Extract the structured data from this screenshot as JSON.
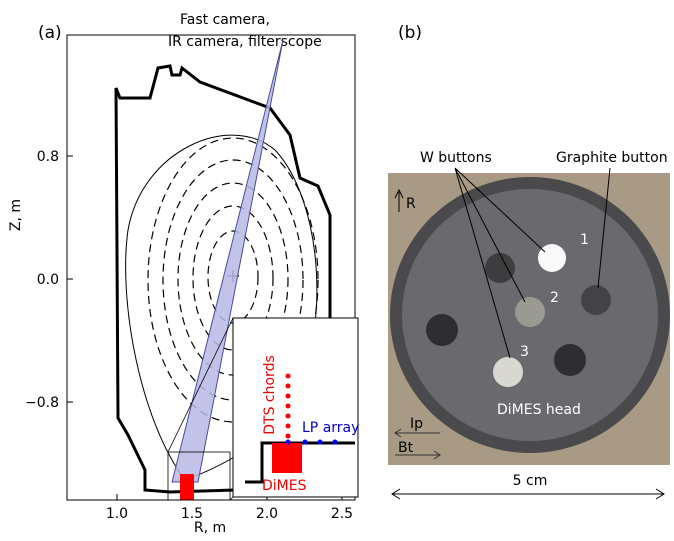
{
  "panel_a": {
    "label": "(a)",
    "camera_label": [
      "Fast camera,",
      "IR camera, filterscope"
    ],
    "x_label": "R, m",
    "y_label": "Z, m",
    "xlim": [
      0.667,
      2.587
    ],
    "ylim": [
      -1.437,
      1.587
    ],
    "xticks": [
      {
        "value": 1,
        "label": "1.0"
      },
      1.5,
      {
        "value": 2,
        "label": "2.0"
      },
      2.5
    ],
    "yticks": [
      {
        "value": -0.8,
        "label": "−0.8"
      },
      {
        "value": 0,
        "label": "0.0"
      },
      0.8
    ],
    "inset_labels": {
      "dts": "DTS chords",
      "lp": "LP array",
      "dimes": "DiMES"
    }
  },
  "panel_b": {
    "label": "(b)",
    "w_buttons": "W buttons",
    "graphite_button": "Graphite button",
    "r_direction": "R",
    "button_numbers": [
      "1",
      "2",
      "3"
    ],
    "dimes_head": "DiMES head",
    "ip": "Ip",
    "bt": "Bt",
    "scale": "5 cm"
  }
}
